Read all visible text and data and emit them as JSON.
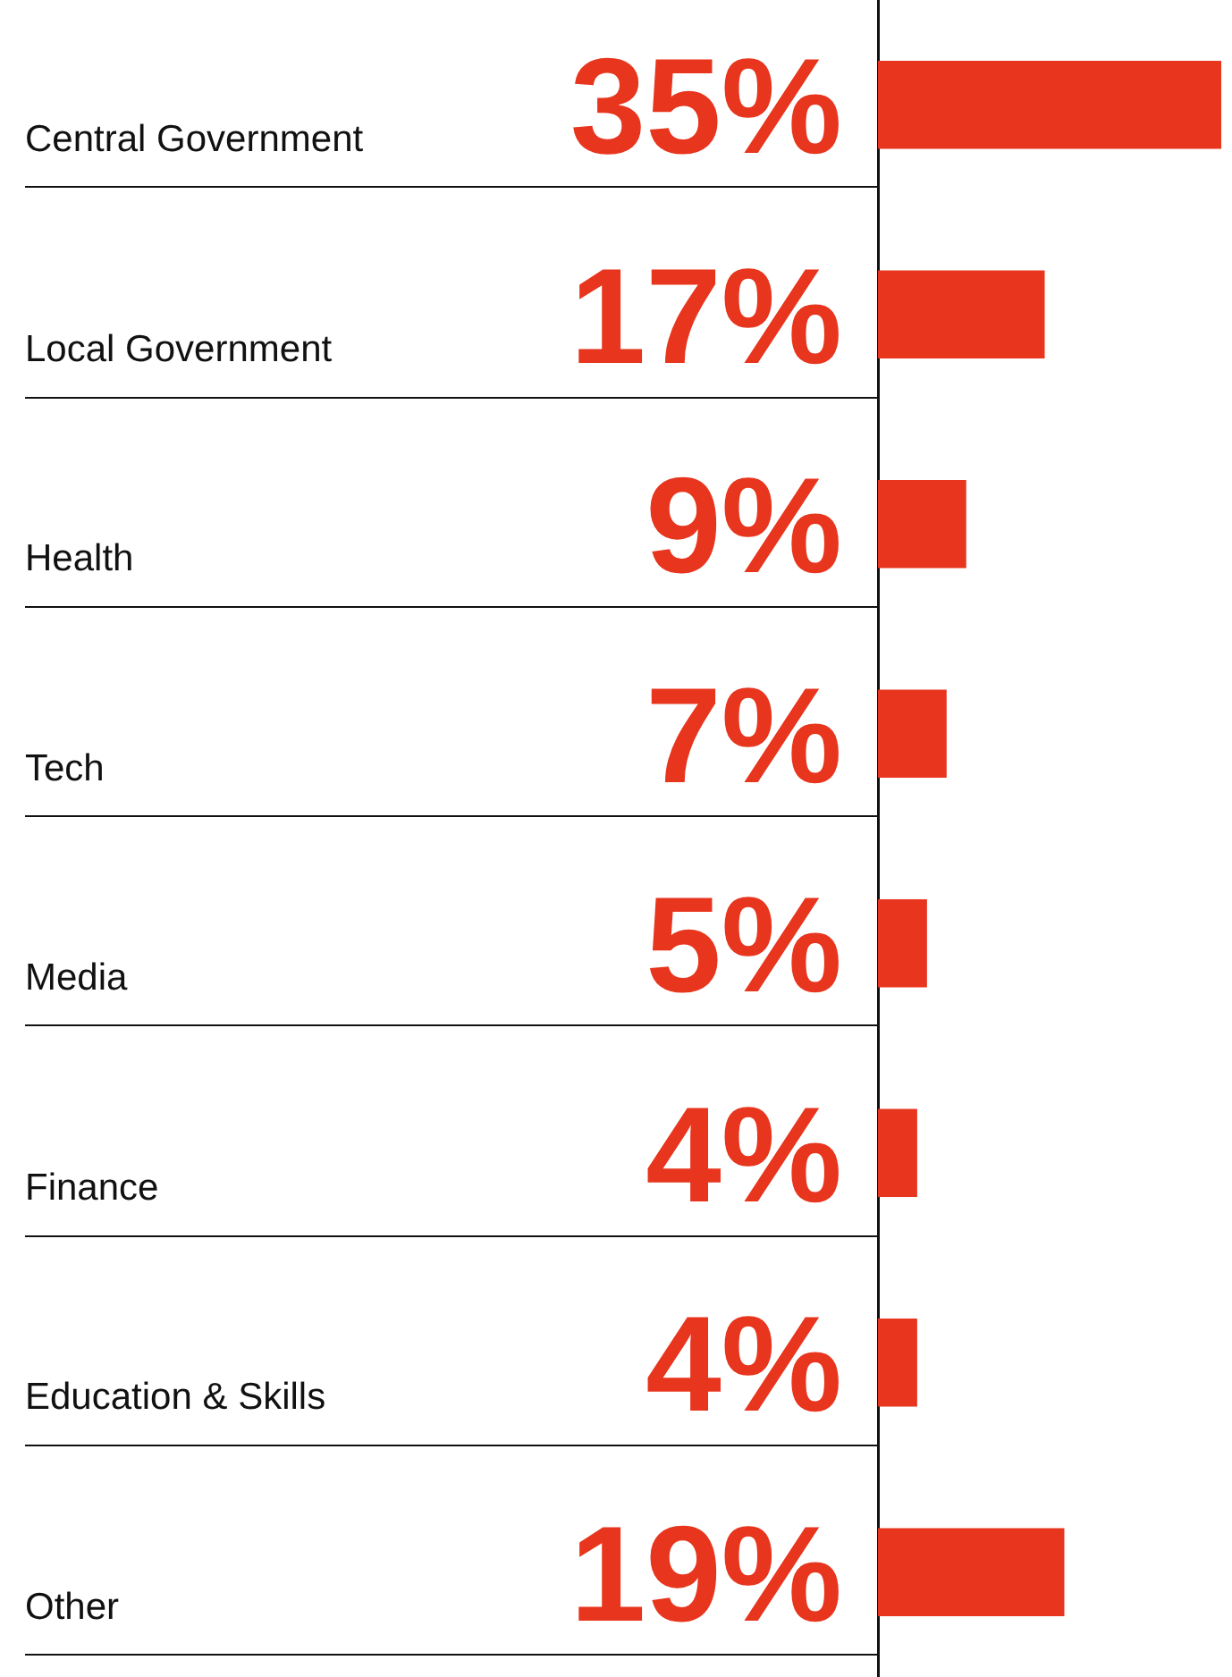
{
  "chart_data": {
    "type": "bar",
    "orientation": "horizontal",
    "relative": false,
    "categories": [
      "Central Government",
      "Local Government",
      "Health",
      "Tech",
      "Media",
      "Finance",
      "Education & Skills",
      "Other"
    ],
    "values": [
      35,
      17,
      9,
      7,
      5,
      4,
      4,
      19
    ],
    "value_labels": [
      "35%",
      "17%",
      "9%",
      "7%",
      "5%",
      "4%",
      "4%",
      "19%"
    ],
    "color": "#e8351e",
    "grid": false,
    "legend": false,
    "tick_labels": false
  }
}
